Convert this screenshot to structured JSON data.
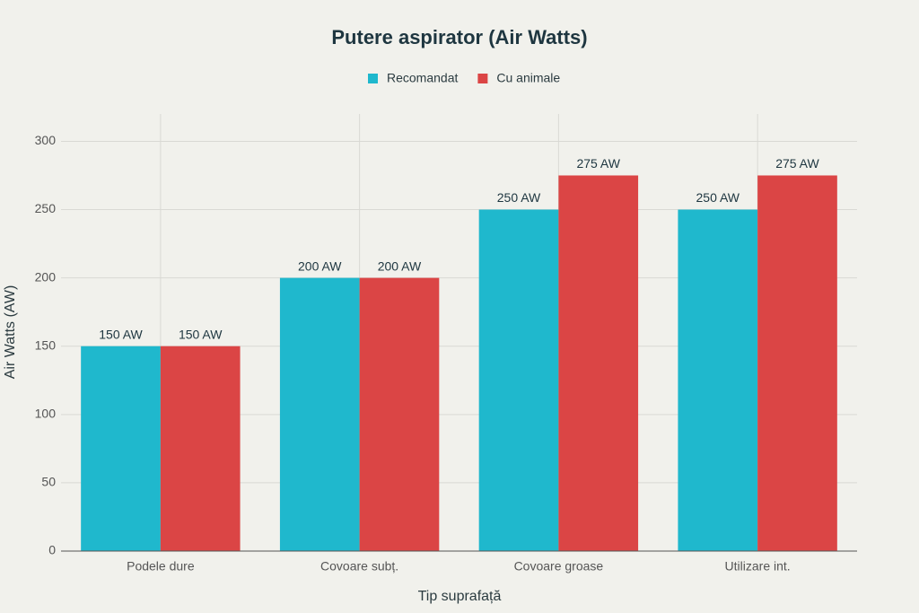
{
  "chart_data": {
    "type": "bar",
    "title": "Putere aspirator (Air Watts)",
    "x_label": "Tip suprafață",
    "y_label": "Air Watts (AW)",
    "categories": [
      "Podele dure",
      "Covoare subț.",
      "Covoare groase",
      "Utilizare int."
    ],
    "series": [
      {
        "name": "Recomandat",
        "color": "#1fb8cd",
        "values": [
          150,
          200,
          250,
          250
        ],
        "value_labels": [
          "150 AW",
          "200 AW",
          "250 AW",
          "250 AW"
        ]
      },
      {
        "name": "Cu animale",
        "color": "#db4545",
        "values": [
          150,
          200,
          275,
          275
        ],
        "value_labels": [
          "150 AW",
          "200 AW",
          "275 AW",
          "275 AW"
        ]
      }
    ],
    "ylim": [
      0,
      320
    ],
    "yticks": [
      0,
      50,
      100,
      150,
      200,
      250,
      300
    ],
    "grid": true,
    "legend": "top"
  }
}
